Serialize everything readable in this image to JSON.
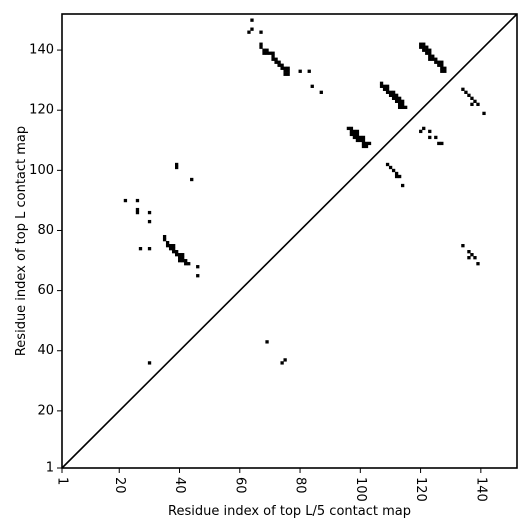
{
  "chart_data": {
    "type": "scatter",
    "xlabel": "Residue index of top L/5 contact map",
    "ylabel": "Residue index of top L contact map",
    "xlim": [
      1,
      152
    ],
    "ylim": [
      1,
      152
    ],
    "x_ticks": [
      1,
      20,
      40,
      60,
      80,
      100,
      120,
      140
    ],
    "y_ticks": [
      1,
      20,
      40,
      60,
      80,
      100,
      120,
      140
    ],
    "x_tick_labels": [
      "1",
      "20",
      "40",
      "60",
      "80",
      "100",
      "120",
      "140"
    ],
    "y_tick_labels": [
      "1",
      "20",
      "40",
      "60",
      "80",
      "100",
      "120",
      "140"
    ],
    "x_tick_rotation": "vertical",
    "grid": false,
    "legend": "none",
    "diagonal": true,
    "marker": "square",
    "point_color": "#000000",
    "points": [
      [
        63,
        146
      ],
      [
        64,
        147
      ],
      [
        64,
        150
      ],
      [
        67,
        146
      ],
      [
        67,
        142
      ],
      [
        67,
        141
      ],
      [
        68,
        140
      ],
      [
        68,
        139
      ],
      [
        69,
        140
      ],
      [
        69,
        139
      ],
      [
        70,
        139
      ],
      [
        71,
        139
      ],
      [
        71,
        138
      ],
      [
        71,
        137
      ],
      [
        72,
        137
      ],
      [
        72,
        136
      ],
      [
        73,
        136
      ],
      [
        73,
        135
      ],
      [
        74,
        135
      ],
      [
        74,
        134
      ],
      [
        75,
        134
      ],
      [
        75,
        133
      ],
      [
        75,
        132
      ],
      [
        76,
        134
      ],
      [
        76,
        133
      ],
      [
        76,
        132
      ],
      [
        80,
        133
      ],
      [
        83,
        133
      ],
      [
        84,
        128
      ],
      [
        87,
        126
      ],
      [
        96,
        114
      ],
      [
        97,
        114
      ],
      [
        97,
        113
      ],
      [
        97,
        112
      ],
      [
        98,
        113
      ],
      [
        98,
        112
      ],
      [
        98,
        111
      ],
      [
        99,
        113
      ],
      [
        99,
        112
      ],
      [
        99,
        111
      ],
      [
        99,
        110
      ],
      [
        100,
        111
      ],
      [
        100,
        110
      ],
      [
        101,
        111
      ],
      [
        101,
        110
      ],
      [
        101,
        109
      ],
      [
        101,
        108
      ],
      [
        102,
        109
      ],
      [
        102,
        108
      ],
      [
        103,
        109
      ],
      [
        107,
        129
      ],
      [
        107,
        128
      ],
      [
        108,
        128
      ],
      [
        108,
        127
      ],
      [
        109,
        128
      ],
      [
        109,
        127
      ],
      [
        109,
        126
      ],
      [
        110,
        126
      ],
      [
        110,
        125
      ],
      [
        111,
        126
      ],
      [
        111,
        125
      ],
      [
        111,
        124
      ],
      [
        112,
        125
      ],
      [
        112,
        124
      ],
      [
        112,
        123
      ],
      [
        113,
        124
      ],
      [
        113,
        123
      ],
      [
        113,
        122
      ],
      [
        113,
        121
      ],
      [
        114,
        123
      ],
      [
        114,
        122
      ],
      [
        114,
        121
      ],
      [
        115,
        121
      ],
      [
        120,
        142
      ],
      [
        120,
        141
      ],
      [
        121,
        142
      ],
      [
        121,
        141
      ],
      [
        121,
        140
      ],
      [
        122,
        141
      ],
      [
        122,
        140
      ],
      [
        122,
        139
      ],
      [
        123,
        140
      ],
      [
        123,
        139
      ],
      [
        123,
        138
      ],
      [
        123,
        137
      ],
      [
        124,
        138
      ],
      [
        124,
        137
      ],
      [
        125,
        137
      ],
      [
        125,
        136
      ],
      [
        126,
        136
      ],
      [
        126,
        135
      ],
      [
        127,
        136
      ],
      [
        127,
        135
      ],
      [
        127,
        134
      ],
      [
        127,
        133
      ],
      [
        128,
        134
      ],
      [
        128,
        133
      ],
      [
        120,
        113
      ],
      [
        121,
        114
      ],
      [
        123,
        113
      ],
      [
        123,
        111
      ],
      [
        125,
        111
      ],
      [
        126,
        109
      ],
      [
        127,
        109
      ],
      [
        134,
        127
      ],
      [
        135,
        126
      ],
      [
        136,
        125
      ],
      [
        137,
        124
      ],
      [
        137,
        122
      ],
      [
        138,
        123
      ],
      [
        139,
        122
      ],
      [
        141,
        119
      ],
      [
        109,
        102
      ],
      [
        110,
        101
      ],
      [
        111,
        100
      ],
      [
        112,
        99
      ],
      [
        112,
        98
      ],
      [
        113,
        98
      ],
      [
        114,
        95
      ],
      [
        134,
        75
      ],
      [
        136,
        73
      ],
      [
        136,
        71
      ],
      [
        137,
        72
      ],
      [
        138,
        71
      ],
      [
        139,
        69
      ],
      [
        22,
        90
      ],
      [
        26,
        90
      ],
      [
        26,
        87
      ],
      [
        26,
        86
      ],
      [
        30,
        86
      ],
      [
        30,
        83
      ],
      [
        27,
        74
      ],
      [
        30,
        74
      ],
      [
        35,
        78
      ],
      [
        35,
        77
      ],
      [
        36,
        76
      ],
      [
        36,
        75
      ],
      [
        37,
        75
      ],
      [
        37,
        74
      ],
      [
        38,
        75
      ],
      [
        38,
        74
      ],
      [
        38,
        73
      ],
      [
        39,
        73
      ],
      [
        39,
        72
      ],
      [
        40,
        72
      ],
      [
        40,
        71
      ],
      [
        40,
        70
      ],
      [
        41,
        72
      ],
      [
        41,
        71
      ],
      [
        41,
        70
      ],
      [
        42,
        70
      ],
      [
        42,
        69
      ],
      [
        43,
        69
      ],
      [
        46,
        68
      ],
      [
        46,
        65
      ],
      [
        39,
        102
      ],
      [
        39,
        101
      ],
      [
        44,
        97
      ],
      [
        69,
        43
      ],
      [
        74,
        36
      ],
      [
        75,
        37
      ],
      [
        30,
        36
      ]
    ]
  }
}
